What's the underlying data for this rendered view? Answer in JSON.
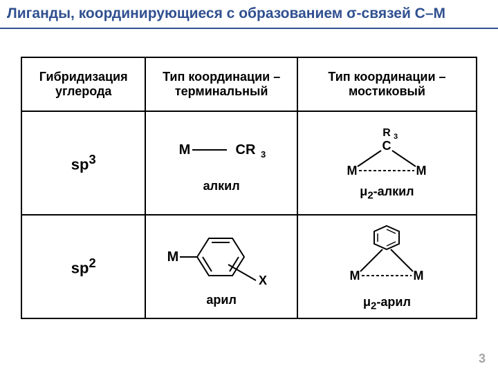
{
  "title": "Лиганды, координирующиеся с образованием σ-связей C–M",
  "headers": {
    "col1": "Гибридизация углерода",
    "col2": "Тип координации – терминальный",
    "col3": "Тип координации – мостиковый"
  },
  "rows": [
    {
      "hyb_html": "sp<sup>3</sup>",
      "terminal_label": "алкил",
      "bridging_label_html": "&mu;<sub>2</sub>-алкил"
    },
    {
      "hyb_html": "sp<sup>2</sup>",
      "terminal_label": "арил",
      "bridging_label_html": "&mu;<sub>2</sub>-арил"
    }
  ],
  "page_number": "3",
  "colors": {
    "title": "#305090",
    "border": "#000000",
    "page_num": "#a6a6a6",
    "stroke": "#000000"
  }
}
